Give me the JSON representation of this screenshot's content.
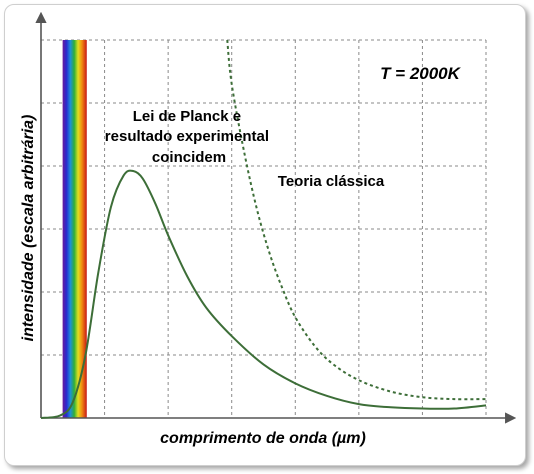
{
  "chart_data": {
    "type": "line",
    "title": "",
    "annotation_temperature": "T = 2000K",
    "annotation_planck": [
      "Lei de Planck e",
      "resultado experimental",
      "coincidem"
    ],
    "annotation_classical": "Teoria clássica",
    "xlabel": "comprimento de onda (µm)",
    "ylabel": "intensidade (escala arbitrária)",
    "grid": true,
    "legend": "none",
    "xlim": [
      0,
      7
    ],
    "ylim": [
      0,
      6
    ],
    "visible_spectrum_band": {
      "x_start": 0.34,
      "x_end": 0.72
    },
    "colors": {
      "planck_curve": "#3d6e38",
      "classical_curve": "#3d6e38",
      "grid": "#8a8a8a",
      "axes": "#555555"
    },
    "series": [
      {
        "style": "solid",
        "x": [
          0.0,
          0.3,
          0.5,
          0.7,
          0.9,
          1.1,
          1.3,
          1.45,
          1.6,
          1.8,
          2.0,
          2.3,
          2.6,
          3.0,
          3.5,
          4.0,
          4.5,
          5.0,
          5.5,
          6.0,
          6.5,
          7.0
        ],
        "y": [
          0.0,
          0.04,
          0.25,
          1.0,
          2.3,
          3.35,
          3.85,
          3.92,
          3.8,
          3.4,
          2.9,
          2.25,
          1.75,
          1.3,
          0.85,
          0.55,
          0.35,
          0.22,
          0.17,
          0.15,
          0.15,
          0.2
        ]
      },
      {
        "style": "dashed",
        "x": [
          2.93,
          3.0,
          3.2,
          3.4,
          3.6,
          3.8,
          4.0,
          4.3,
          4.6,
          5.0,
          5.5,
          6.0,
          6.5,
          7.0
        ],
        "y": [
          6.0,
          5.3,
          4.2,
          3.3,
          2.6,
          2.05,
          1.6,
          1.15,
          0.85,
          0.6,
          0.42,
          0.33,
          0.3,
          0.3
        ]
      }
    ]
  }
}
